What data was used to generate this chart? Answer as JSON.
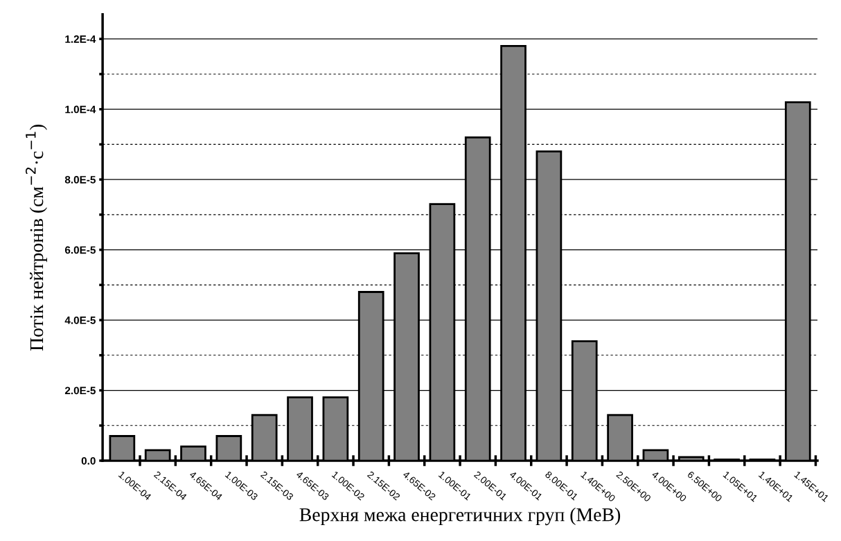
{
  "chart_data": {
    "type": "bar",
    "xlabel": "Верхня межа енергетичних груп (MeB)",
    "ylabel": "Потік нейтронів (см$^{−2}$·с$^{−1}$)",
    "categories": [
      "1.00E-04",
      "2.15E-04",
      "4.65E-04",
      "1.00E-03",
      "2.15E-03",
      "4.65E-03",
      "1.00E-02",
      "2.15E-02",
      "4.65E-02",
      "1.00E-01",
      "2.00E-01",
      "4.00E-01",
      "8.00E-01",
      "1.40E+00",
      "2.50E+00",
      "4.00E+00",
      "6.50E+00",
      "1.05E+01",
      "1.40E+01",
      "1.45E+01"
    ],
    "values": [
      7e-06,
      3e-06,
      4e-06,
      7e-06,
      1.3e-05,
      1.8e-05,
      1.8e-05,
      4.8e-05,
      5.9e-05,
      7.3e-05,
      9.2e-05,
      0.000118,
      8.8e-05,
      3.4e-05,
      1.3e-05,
      3e-06,
      1e-06,
      3e-07,
      3e-07,
      0.000102
    ],
    "color": "#808080",
    "ylim": [
      0,
      0.000127
    ],
    "yticks": [
      {
        "value": 0,
        "label": "0.0"
      },
      {
        "value": 1e-05,
        "label": null
      },
      {
        "value": 2e-05,
        "label": "2.0E-5"
      },
      {
        "value": 3e-05,
        "label": null
      },
      {
        "value": 4e-05,
        "label": "4.0E-5"
      },
      {
        "value": 5e-05,
        "label": null
      },
      {
        "value": 6e-05,
        "label": "6.0E-5"
      },
      {
        "value": 7e-05,
        "label": null
      },
      {
        "value": 8e-05,
        "label": "8.0E-5"
      },
      {
        "value": 9e-05,
        "label": null
      },
      {
        "value": 0.0001,
        "label": "1.0E-4"
      },
      {
        "value": 0.00011,
        "label": null
      },
      {
        "value": 0.00012,
        "label": "1.2E-4"
      }
    ],
    "grid": "y"
  }
}
